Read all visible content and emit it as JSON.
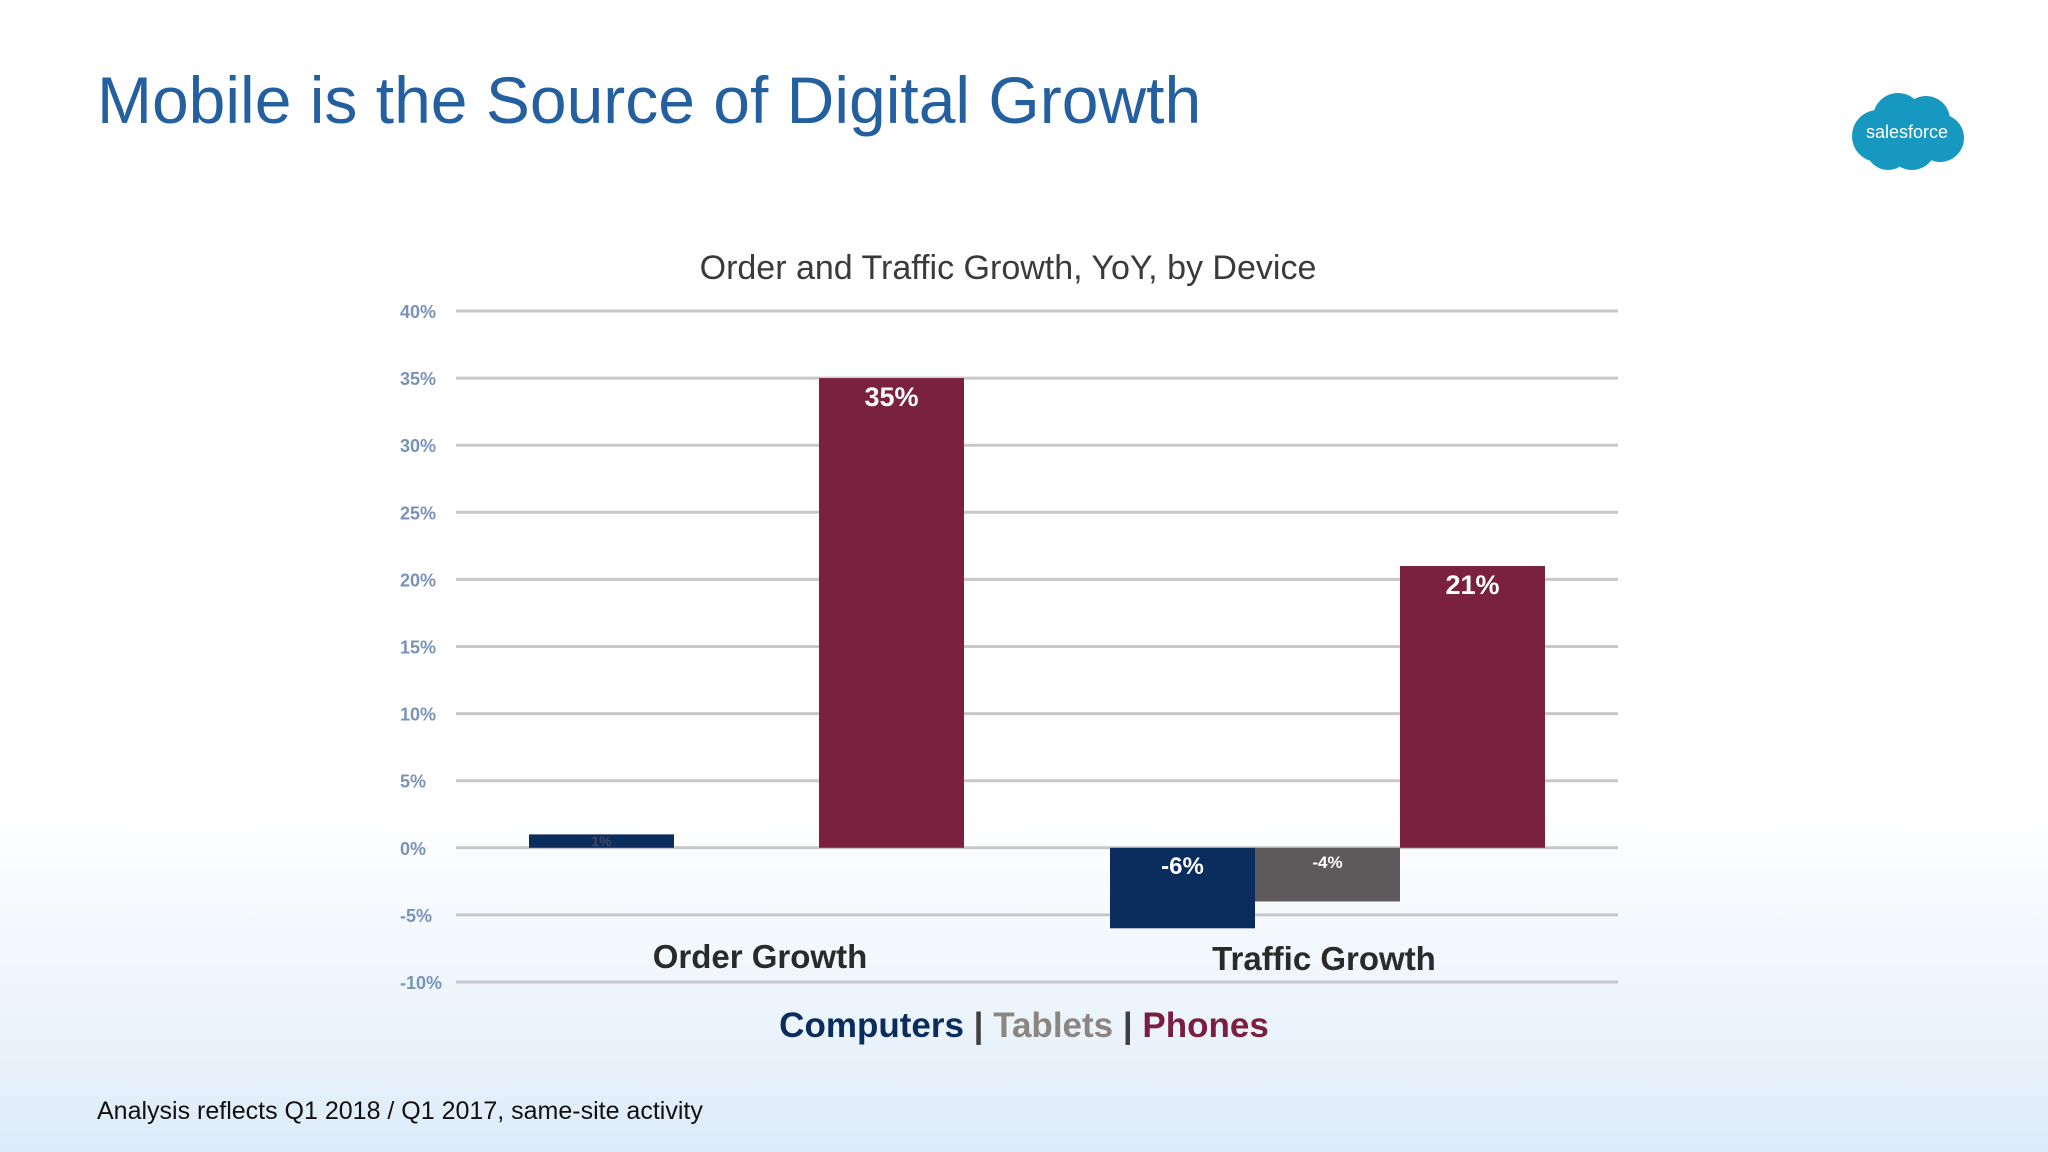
{
  "slide": {
    "title": "Mobile is the Source of Digital Growth",
    "footnote": "Analysis reflects Q1 2018 / Q1 2017, same-site activity",
    "logo_text": "salesforce",
    "title_color": "#24609f",
    "logo_color": "#1798c1"
  },
  "legend": {
    "items": [
      {
        "label": "Computers",
        "color": "#0b2d5e"
      },
      {
        "label": "Tablets",
        "color": "#8c8681"
      },
      {
        "label": "Phones",
        "color": "#7b1f40"
      }
    ],
    "separator": "|"
  },
  "chart_data": {
    "type": "bar",
    "title": "Order and Traffic Growth, YoY, by Device",
    "categories": [
      "Order Growth",
      "Traffic Growth"
    ],
    "series": [
      {
        "name": "Computers",
        "color": "#0b2d5e",
        "values": [
          1,
          -6
        ],
        "labels": [
          "1%",
          "-6%"
        ]
      },
      {
        "name": "Tablets",
        "color": "#5e5a5c",
        "values": [
          0,
          -4
        ],
        "labels": [
          "",
          "-4%"
        ]
      },
      {
        "name": "Phones",
        "color": "#7b2140",
        "values": [
          35,
          21
        ],
        "labels": [
          "35%",
          "21%"
        ]
      }
    ],
    "ylim": [
      -10,
      40
    ],
    "yticks": [
      40,
      35,
      30,
      25,
      20,
      15,
      10,
      5,
      0,
      -5,
      -10
    ],
    "ytick_labels": [
      "40%",
      "35%",
      "30%",
      "25%",
      "20%",
      "15%",
      "10%",
      "5%",
      "0%",
      "-5%",
      "-10%"
    ],
    "grid": true,
    "legend_placement": "bottom"
  }
}
